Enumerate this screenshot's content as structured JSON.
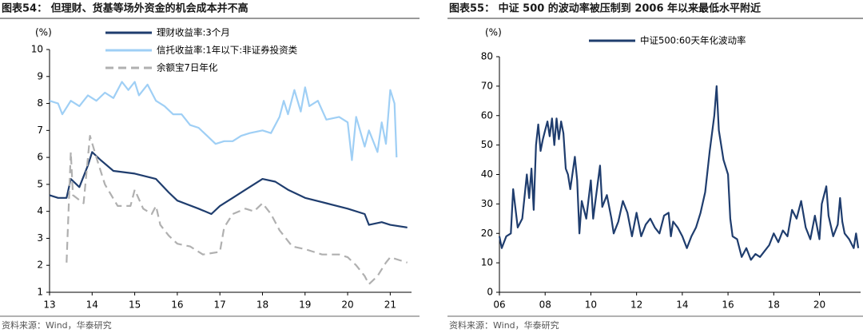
{
  "chart_data": [
    {
      "type": "line",
      "title": "图表54：  但理财、货基等场外资金的机会成本并不高",
      "ylabel": "(%)",
      "source": "资料来源：Wind，华泰研究",
      "xlim": [
        13,
        21.5
      ],
      "xticks": [
        13,
        14,
        15,
        16,
        17,
        18,
        19,
        20,
        21
      ],
      "ylim": [
        1,
        10
      ],
      "yticks": [
        1,
        2,
        3,
        4,
        5,
        6,
        7,
        8,
        9,
        10
      ],
      "series": [
        {
          "name": "理财收益率:3个月",
          "color": "#1f3d6e",
          "line_style": "solid",
          "x": [
            13.0,
            13.2,
            13.4,
            13.5,
            13.7,
            13.9,
            14.0,
            14.2,
            14.5,
            15.0,
            15.5,
            15.8,
            16.0,
            16.5,
            16.8,
            17.0,
            17.3,
            17.6,
            18.0,
            18.3,
            18.6,
            19.0,
            19.5,
            20.0,
            20.4,
            20.5,
            20.8,
            21.0,
            21.4
          ],
          "values": [
            4.6,
            4.5,
            4.5,
            5.2,
            4.9,
            5.7,
            6.2,
            5.9,
            5.5,
            5.4,
            5.2,
            4.7,
            4.4,
            4.1,
            3.9,
            4.2,
            4.5,
            4.8,
            5.2,
            5.1,
            4.8,
            4.5,
            4.3,
            4.1,
            3.9,
            3.5,
            3.6,
            3.5,
            3.4
          ]
        },
        {
          "name": "信托收益率:1年以下:非证券投资类",
          "color": "#9fcff5",
          "line_style": "solid",
          "x": [
            13.0,
            13.2,
            13.3,
            13.5,
            13.7,
            13.9,
            14.1,
            14.3,
            14.5,
            14.7,
            14.85,
            15.0,
            15.1,
            15.3,
            15.5,
            15.7,
            15.9,
            16.1,
            16.3,
            16.5,
            16.7,
            16.9,
            17.1,
            17.3,
            17.5,
            17.7,
            18.0,
            18.2,
            18.4,
            18.5,
            18.6,
            18.75,
            18.9,
            19.0,
            19.1,
            19.3,
            19.5,
            19.8,
            20.0,
            20.1,
            20.2,
            20.4,
            20.5,
            20.7,
            20.8,
            20.9,
            21.0,
            21.1,
            21.15
          ],
          "values": [
            8.1,
            8.0,
            7.6,
            8.1,
            7.9,
            8.3,
            8.1,
            8.4,
            8.2,
            8.8,
            8.5,
            8.8,
            8.3,
            8.7,
            8.1,
            7.9,
            7.6,
            7.6,
            7.2,
            7.1,
            6.8,
            6.5,
            6.6,
            6.6,
            6.8,
            6.9,
            7.0,
            6.9,
            7.5,
            8.1,
            7.6,
            8.5,
            7.7,
            8.6,
            7.9,
            8.1,
            7.4,
            7.5,
            7.3,
            5.9,
            7.5,
            6.4,
            7.0,
            6.2,
            7.3,
            6.5,
            8.5,
            8.0,
            6.0
          ]
        },
        {
          "name": "余额宝7日年化",
          "color": "#b0b0b0",
          "line_style": "dashed",
          "x": [
            13.4,
            13.5,
            13.55,
            13.8,
            13.95,
            14.1,
            14.3,
            14.6,
            14.9,
            15.0,
            15.2,
            15.4,
            15.5,
            15.6,
            15.8,
            16.0,
            16.3,
            16.6,
            17.0,
            17.1,
            17.3,
            17.6,
            17.8,
            18.0,
            18.2,
            18.4,
            18.7,
            19.0,
            19.4,
            19.8,
            20.0,
            20.2,
            20.4,
            20.5,
            20.7,
            20.9,
            21.0,
            21.2,
            21.4
          ],
          "values": [
            2.1,
            6.2,
            4.6,
            4.3,
            6.8,
            6.0,
            5.0,
            4.2,
            4.2,
            4.8,
            4.1,
            3.9,
            4.2,
            3.5,
            3.1,
            2.8,
            2.7,
            2.4,
            2.5,
            3.4,
            3.9,
            4.1,
            4.0,
            4.3,
            3.9,
            3.3,
            2.7,
            2.6,
            2.4,
            2.4,
            2.3,
            2.0,
            1.6,
            1.3,
            1.6,
            2.1,
            2.3,
            2.2,
            2.1
          ]
        }
      ]
    },
    {
      "type": "line",
      "title": "图表55：  中证 500 的波动率被压制到 2006 年以来最低水平附近",
      "ylabel": "(%)",
      "source": "资料来源：Wind，华泰研究",
      "xlim": [
        6,
        21.8
      ],
      "xticks": [
        {
          "value": 6,
          "label": "06"
        },
        {
          "value": 8,
          "label": "08"
        },
        10,
        12,
        14,
        16,
        18,
        20
      ],
      "ylim": [
        0,
        80
      ],
      "yticks": [
        0,
        10,
        20,
        30,
        40,
        50,
        60,
        70,
        80
      ],
      "series": [
        {
          "name": "中证500:60天年化波动率",
          "color": "#1f3d6e",
          "line_style": "solid",
          "x": [
            6.0,
            6.1,
            6.3,
            6.5,
            6.6,
            6.8,
            7.0,
            7.2,
            7.3,
            7.4,
            7.5,
            7.6,
            7.7,
            7.8,
            7.9,
            8.0,
            8.1,
            8.2,
            8.3,
            8.4,
            8.5,
            8.6,
            8.7,
            8.8,
            8.9,
            9.0,
            9.1,
            9.3,
            9.4,
            9.5,
            9.6,
            9.8,
            10.0,
            10.1,
            10.3,
            10.4,
            10.5,
            10.7,
            10.9,
            11.0,
            11.2,
            11.4,
            11.6,
            11.8,
            12.0,
            12.2,
            12.4,
            12.6,
            12.8,
            13.0,
            13.2,
            13.4,
            13.5,
            13.6,
            13.8,
            14.0,
            14.2,
            14.4,
            14.6,
            14.8,
            15.0,
            15.2,
            15.4,
            15.5,
            15.6,
            15.8,
            16.0,
            16.1,
            16.2,
            16.4,
            16.6,
            16.8,
            17.0,
            17.2,
            17.4,
            17.6,
            17.8,
            18.0,
            18.2,
            18.4,
            18.6,
            18.8,
            19.0,
            19.2,
            19.4,
            19.6,
            19.8,
            20.0,
            20.1,
            20.3,
            20.4,
            20.6,
            20.8,
            20.9,
            21.0,
            21.1,
            21.3,
            21.5,
            21.6,
            21.7
          ],
          "values": [
            19,
            15,
            19,
            20,
            35,
            22,
            25,
            40,
            32,
            42,
            28,
            50,
            57,
            48,
            52,
            55,
            58,
            53,
            59,
            50,
            59,
            52,
            58,
            54,
            42,
            40,
            35,
            46,
            38,
            20,
            31,
            25,
            38,
            25,
            37,
            43,
            29,
            33,
            25,
            20,
            24,
            31,
            27,
            19,
            27,
            19,
            23,
            25,
            22,
            20,
            26,
            27,
            19,
            24,
            22,
            19,
            15,
            19,
            22,
            27,
            34,
            48,
            60,
            70,
            55,
            45,
            40,
            25,
            19,
            18,
            12,
            15,
            11,
            13,
            12,
            14,
            16,
            20,
            17,
            21,
            19,
            28,
            25,
            31,
            22,
            18,
            26,
            18,
            30,
            36,
            26,
            19,
            23,
            32,
            24,
            20,
            18,
            15,
            20,
            15
          ]
        }
      ]
    }
  ]
}
